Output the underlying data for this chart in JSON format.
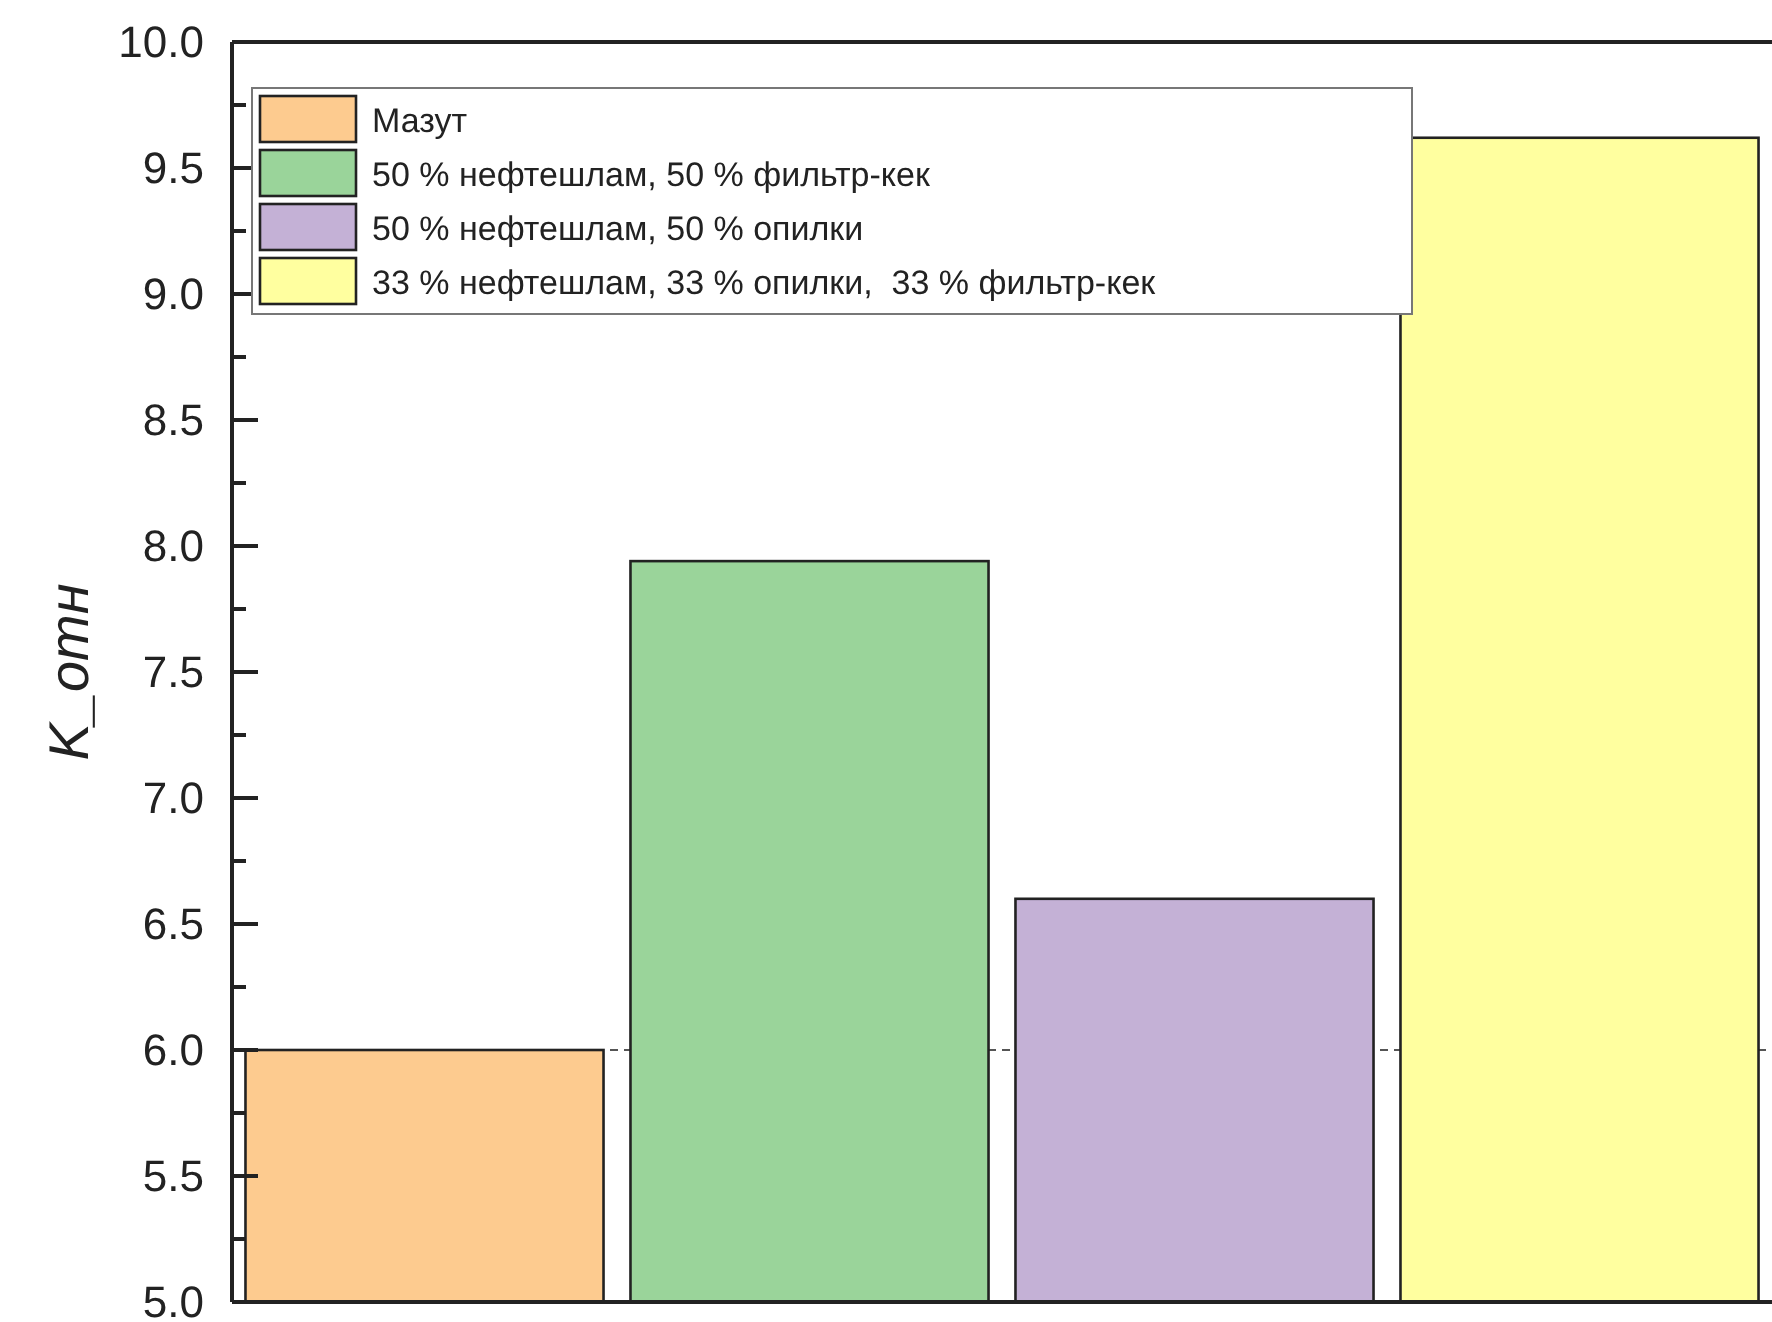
{
  "chart_data": {
    "type": "bar",
    "ylabel": "K_отн",
    "categories": [
      null,
      null,
      null,
      null
    ],
    "series": [
      {
        "name": "Мазут",
        "color": "#fdcb8f",
        "values": [
          6.0,
          null,
          null,
          null
        ]
      },
      {
        "name": "50 % нефтешлам, 50 % фильтр-кек",
        "color": "#9ad49a",
        "values": [
          null,
          7.94,
          null,
          null
        ]
      },
      {
        "name": "50 % нефтешлам, 50 % опилки",
        "color": "#c4b1d6",
        "values": [
          null,
          null,
          6.6,
          null
        ]
      },
      {
        "name": "33 % нефтешлам, 33 % опилки,  33 % фильтр-кек",
        "color": "#ffff9f",
        "values": [
          null,
          null,
          null,
          9.62
        ]
      }
    ],
    "ylim": [
      5.0,
      10.0
    ],
    "yticks": [
      {
        "value": 5,
        "label": "5.0"
      },
      {
        "value": 5.25,
        "label": null
      },
      5.5,
      {
        "value": 5.75,
        "label": null
      },
      {
        "value": 6,
        "label": "6.0"
      },
      {
        "value": 6.25,
        "label": null
      },
      6.5,
      {
        "value": 6.75,
        "label": null
      },
      {
        "value": 7,
        "label": "7.0"
      },
      {
        "value": 7.25,
        "label": null
      },
      7.5,
      {
        "value": 7.75,
        "label": null
      },
      {
        "value": 8,
        "label": "8.0"
      },
      {
        "value": 8.25,
        "label": null
      },
      8.5,
      {
        "value": 8.75,
        "label": null
      },
      {
        "value": 9,
        "label": "9.0"
      },
      {
        "value": 9.25,
        "label": null
      },
      9.5,
      {
        "value": 9.75,
        "label": null
      },
      {
        "value": 10,
        "label": "10.0"
      }
    ],
    "ref_lines": [
      {
        "axis": "y",
        "value": 6.0,
        "label": null,
        "color": "#555555",
        "line_style": "dashed"
      }
    ],
    "legend": "top left",
    "grid": false
  }
}
